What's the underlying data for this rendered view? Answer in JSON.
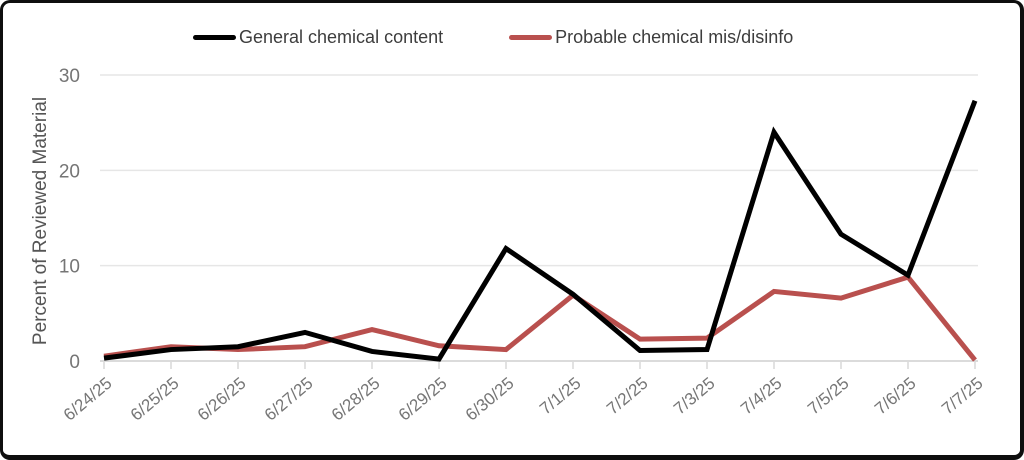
{
  "frame": {
    "background": "#ffffff",
    "border_color": "#0e0e0e"
  },
  "chart_data": {
    "type": "line",
    "title": "",
    "xlabel": "",
    "ylabel": "Percent of Reviewed Material",
    "categories": [
      "6/24/25",
      "6/25/25",
      "6/26/25",
      "6/27/25",
      "6/28/25",
      "6/29/25",
      "6/30/25",
      "7/1/25",
      "7/2/25",
      "7/3/25",
      "7/4/25",
      "7/5/25",
      "7/6/25",
      "7/7/25"
    ],
    "series": [
      {
        "name": "General chemical content",
        "color": "#000000",
        "values": [
          0.3,
          1.2,
          1.5,
          3.0,
          1.0,
          0.2,
          11.8,
          7.0,
          1.1,
          1.2,
          24.0,
          13.3,
          9.0,
          27.3
        ]
      },
      {
        "name": "Probable chemical mis/disinfo",
        "color": "#b9504e",
        "values": [
          0.5,
          1.5,
          1.2,
          1.5,
          3.3,
          1.6,
          1.2,
          6.9,
          2.3,
          2.4,
          7.3,
          6.6,
          8.8,
          0.1
        ]
      }
    ],
    "ylim": [
      0,
      30
    ],
    "yticks": [
      0,
      10,
      20,
      30
    ],
    "grid": "horizontal",
    "legend_position": "top",
    "gridline_color": "#e6e6e6",
    "baseline_color": "#cfcfcf",
    "tick_mark_color": "#d9d9d9",
    "tick_label_color": "#757575",
    "axis_title_color": "#555555",
    "line_width": 5
  }
}
